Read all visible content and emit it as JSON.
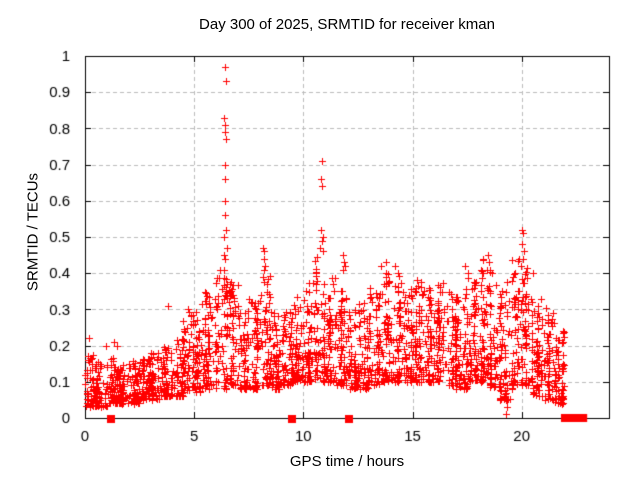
{
  "chart_data": {
    "type": "scatter",
    "title": "Day 300 of 2025, SRMTID for receiver kman",
    "xlabel": "GPS time / hours",
    "ylabel": "SRMTID / TECUs",
    "xlim": [
      0,
      24
    ],
    "ylim": [
      0,
      1
    ],
    "grid": true,
    "legend": "none",
    "marker": "plus",
    "colors": {
      "marker": "#ff0000",
      "grid": "#bbbbbb",
      "axis": "#000000",
      "background": "#ffffff",
      "text": "#000000"
    },
    "xticks": {
      "values": [
        0,
        5,
        10,
        15,
        20
      ],
      "labels": [
        "0",
        "5",
        "10",
        "15",
        "20"
      ]
    },
    "yticks": {
      "values": [
        0,
        0.1,
        0.2,
        0.3,
        0.4,
        0.5,
        0.6,
        0.7,
        0.8,
        0.9,
        1
      ],
      "labels": [
        "0",
        "0.1",
        "0.2",
        "0.3",
        "0.4",
        "0.5",
        "0.6",
        "0.7",
        "0.8",
        "0.9",
        "1"
      ]
    },
    "band_summary_note": "dense 30s-cadence scatter; bins are [xStartHours,xEndHours,yMin,yMax,pointCount]",
    "bands": [
      [
        0.0,
        0.5,
        0.03,
        0.18,
        55
      ],
      [
        0.5,
        1.0,
        0.03,
        0.16,
        55
      ],
      [
        1.0,
        1.5,
        0.04,
        0.17,
        55
      ],
      [
        1.5,
        2.0,
        0.04,
        0.15,
        55
      ],
      [
        2.0,
        2.5,
        0.04,
        0.16,
        55
      ],
      [
        2.5,
        3.0,
        0.05,
        0.17,
        55
      ],
      [
        3.0,
        3.5,
        0.05,
        0.18,
        55
      ],
      [
        3.5,
        4.0,
        0.06,
        0.2,
        55
      ],
      [
        4.0,
        4.5,
        0.06,
        0.22,
        55
      ],
      [
        4.5,
        5.0,
        0.07,
        0.3,
        55
      ],
      [
        5.0,
        5.5,
        0.07,
        0.32,
        55
      ],
      [
        5.5,
        6.0,
        0.08,
        0.35,
        55
      ],
      [
        6.0,
        6.5,
        0.08,
        0.42,
        65
      ],
      [
        6.5,
        7.0,
        0.09,
        0.38,
        55
      ],
      [
        7.0,
        7.5,
        0.08,
        0.3,
        55
      ],
      [
        7.5,
        8.0,
        0.08,
        0.33,
        55
      ],
      [
        8.0,
        8.5,
        0.09,
        0.4,
        58
      ],
      [
        8.5,
        9.0,
        0.08,
        0.3,
        55
      ],
      [
        9.0,
        9.5,
        0.09,
        0.32,
        55
      ],
      [
        9.5,
        10.0,
        0.1,
        0.35,
        55
      ],
      [
        10.0,
        10.5,
        0.1,
        0.38,
        58
      ],
      [
        10.5,
        11.0,
        0.1,
        0.45,
        65
      ],
      [
        11.0,
        11.5,
        0.1,
        0.4,
        58
      ],
      [
        11.5,
        12.0,
        0.09,
        0.38,
        58
      ],
      [
        12.0,
        12.5,
        0.08,
        0.3,
        55
      ],
      [
        12.5,
        13.0,
        0.08,
        0.32,
        55
      ],
      [
        13.0,
        13.5,
        0.09,
        0.36,
        58
      ],
      [
        13.5,
        14.0,
        0.1,
        0.42,
        58
      ],
      [
        14.0,
        14.5,
        0.1,
        0.4,
        58
      ],
      [
        14.5,
        15.0,
        0.1,
        0.36,
        58
      ],
      [
        15.0,
        15.5,
        0.1,
        0.38,
        58
      ],
      [
        15.5,
        16.0,
        0.1,
        0.36,
        58
      ],
      [
        16.0,
        16.5,
        0.1,
        0.38,
        58
      ],
      [
        16.5,
        17.0,
        0.09,
        0.35,
        58
      ],
      [
        17.0,
        17.5,
        0.08,
        0.36,
        58
      ],
      [
        17.5,
        18.0,
        0.1,
        0.4,
        58
      ],
      [
        18.0,
        18.5,
        0.1,
        0.44,
        58
      ],
      [
        18.5,
        19.0,
        0.08,
        0.42,
        58
      ],
      [
        19.0,
        19.5,
        0.05,
        0.38,
        55
      ],
      [
        19.5,
        20.0,
        0.08,
        0.44,
        58
      ],
      [
        20.0,
        20.5,
        0.09,
        0.42,
        62
      ],
      [
        20.5,
        21.0,
        0.06,
        0.33,
        58
      ],
      [
        21.0,
        21.5,
        0.05,
        0.32,
        58
      ],
      [
        21.5,
        21.95,
        0.04,
        0.24,
        65
      ]
    ],
    "peak_points": [
      [
        0.2,
        0.22
      ],
      [
        0.95,
        0.2
      ],
      [
        1.35,
        0.21
      ],
      [
        1.45,
        0.2
      ],
      [
        3.8,
        0.31
      ],
      [
        6.4,
        0.97
      ],
      [
        6.45,
        0.93
      ],
      [
        6.38,
        0.83
      ],
      [
        6.42,
        0.81
      ],
      [
        6.4,
        0.79
      ],
      [
        6.44,
        0.77
      ],
      [
        6.41,
        0.7
      ],
      [
        6.43,
        0.66
      ],
      [
        6.4,
        0.6
      ],
      [
        6.42,
        0.56
      ],
      [
        6.45,
        0.52
      ],
      [
        6.38,
        0.5
      ],
      [
        6.5,
        0.47
      ],
      [
        6.35,
        0.45
      ],
      [
        6.42,
        0.44
      ],
      [
        8.15,
        0.47
      ],
      [
        8.22,
        0.46
      ],
      [
        8.18,
        0.44
      ],
      [
        8.25,
        0.42
      ],
      [
        8.2,
        0.41
      ],
      [
        10.85,
        0.71
      ],
      [
        10.82,
        0.66
      ],
      [
        10.87,
        0.64
      ],
      [
        10.8,
        0.52
      ],
      [
        10.9,
        0.5
      ],
      [
        10.85,
        0.49
      ],
      [
        10.78,
        0.47
      ],
      [
        10.92,
        0.46
      ],
      [
        11.8,
        0.45
      ],
      [
        11.85,
        0.43
      ],
      [
        11.9,
        0.42
      ],
      [
        11.82,
        0.41
      ],
      [
        13.8,
        0.43
      ],
      [
        14.2,
        0.42
      ],
      [
        14.35,
        0.4
      ],
      [
        15.2,
        0.38
      ],
      [
        17.4,
        0.42
      ],
      [
        17.55,
        0.4
      ],
      [
        18.45,
        0.45
      ],
      [
        18.5,
        0.43
      ],
      [
        18.4,
        0.41
      ],
      [
        19.3,
        0.12
      ],
      [
        19.32,
        0.09
      ],
      [
        19.28,
        0.07
      ],
      [
        19.3,
        0.05
      ],
      [
        19.35,
        0.03
      ],
      [
        19.3,
        0.01
      ],
      [
        19.9,
        0.44
      ],
      [
        19.95,
        0.42
      ],
      [
        20.0,
        0.52
      ],
      [
        20.05,
        0.51
      ],
      [
        20.02,
        0.48
      ],
      [
        20.1,
        0.46
      ],
      [
        20.08,
        0.44
      ]
    ],
    "baseline_square_markers_hours": [
      1.2,
      9.5,
      12.1
    ],
    "baseline_bar_hours": [
      21.8,
      23.0
    ]
  }
}
